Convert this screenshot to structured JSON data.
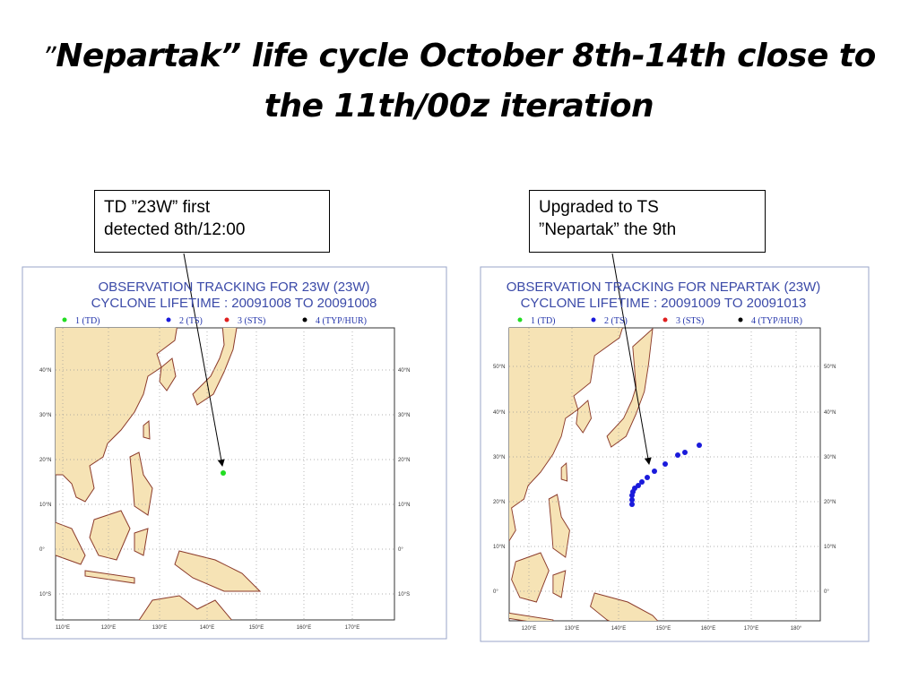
{
  "title": {
    "prefix": "”",
    "lines": [
      "Nepartak” life cycle October 8th-14th close to",
      "the 11th/00z iteration"
    ]
  },
  "callouts": [
    {
      "lines": [
        "TD ”23W” first",
        "detected 8th/12:00"
      ]
    },
    {
      "lines": [
        "Upgraded to TS",
        "”Nepartak” the 9th"
      ]
    }
  ],
  "maps": [
    {
      "title_lines": [
        "OBSERVATION TRACKING FOR 23W (23W)",
        "CYCLONE LIFETIME : 20091008 TO 20091008"
      ],
      "legend": [
        "1 (TD)",
        "2 (TS)",
        "3 (STS)",
        "4 (TYP/HUR)"
      ],
      "lat_labels": [
        "40°N",
        "30°N",
        "20°N",
        "10°N",
        "0°",
        "10°S"
      ],
      "lon_labels": [
        "110°E",
        "120°E",
        "130°E",
        "140°E",
        "150°E",
        "160°E",
        "170°E"
      ]
    },
    {
      "title_lines": [
        "OBSERVATION TRACKING FOR NEPARTAK (23W)",
        "CYCLONE LIFETIME : 20091009 TO 20091013"
      ],
      "legend": [
        "1 (TD)",
        "2 (TS)",
        "3 (STS)",
        "4 (TYP/HUR)"
      ],
      "lat_labels": [
        "50°N",
        "40°N",
        "30°N",
        "20°N",
        "10°N",
        "0°"
      ],
      "lon_labels": [
        "120°E",
        "130°E",
        "140°E",
        "150°E",
        "160°E",
        "170°E",
        "180°"
      ]
    }
  ]
}
